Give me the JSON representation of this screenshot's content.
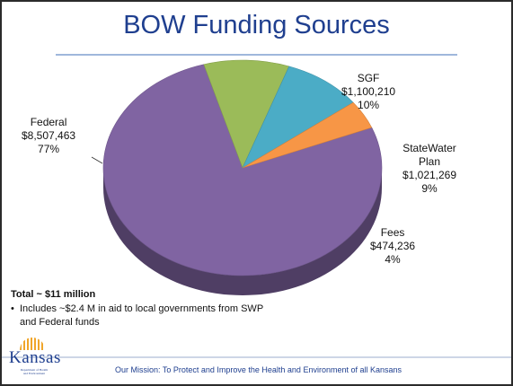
{
  "slide": {
    "title": "BOW Funding Sources",
    "total_label": "Total ~ $11 million",
    "note_bullet": "•",
    "note_text": "Includes ~$2.4 M in aid to local governments  from SWP and Federal funds",
    "mission": "Our Mission:  To Protect and Improve the Health and Environment of all Kansans",
    "logo": {
      "word": "Kansas",
      "sub_line1": "Department of Health",
      "sub_line2": "and Environment"
    }
  },
  "chart_data": {
    "type": "pie",
    "style": "3d",
    "title": "BOW Funding Sources",
    "slices": [
      {
        "name": "Federal",
        "amount_label": "$8,507,463",
        "percent_label": "77%",
        "value": 8507463,
        "percent": 77,
        "color": "#8064a2"
      },
      {
        "name": "SGF",
        "amount_label": "$1,100,210",
        "percent_label": "10%",
        "value": 1100210,
        "percent": 10,
        "color": "#9bbb59"
      },
      {
        "name": "StateWater Plan",
        "amount_label": "$1,021,269",
        "percent_label": "9%",
        "value": 1021269,
        "percent": 9,
        "color": "#4bacc6"
      },
      {
        "name": "Fees",
        "amount_label": "$474,236",
        "percent_label": "4%",
        "value": 474236,
        "percent": 4,
        "color": "#f79646"
      }
    ]
  }
}
